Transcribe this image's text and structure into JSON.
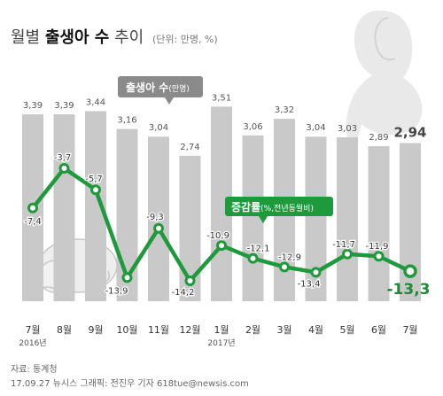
{
  "header": {
    "title_prefix": "월별",
    "title_bold": "출생아 수",
    "title_suffix": "추이",
    "unit": "(단위: 만명, %)"
  },
  "legend": {
    "births_label": "출생아 수",
    "births_unit": "(만명)",
    "rate_label": "증감률",
    "rate_unit": "(%,전년동월비)"
  },
  "footer": {
    "source": "자료: 통계청",
    "credit": "17.09.27 뉴시스 그래픽: 전진우 기자 618tue@newsis.com"
  },
  "colors": {
    "bar": "#c9c9c9",
    "line": "#1e9a3c",
    "accent_text": "#1e8a36",
    "callout_gray": "#8a8a8a",
    "text": "#333333"
  },
  "chart_data": {
    "type": "bar+line",
    "categories": [
      "7월",
      "8월",
      "9월",
      "10월",
      "11월",
      "12월",
      "1월",
      "2월",
      "3월",
      "4월",
      "5월",
      "6월",
      "7월"
    ],
    "year_labels": [
      {
        "index": 0,
        "text": "2016년"
      },
      {
        "index": 6,
        "text": "2017년"
      }
    ],
    "series": [
      {
        "name": "출생아 수",
        "kind": "bar",
        "unit": "만명",
        "values": [
          3.39,
          3.39,
          3.44,
          3.16,
          3.04,
          2.74,
          3.51,
          3.06,
          3.32,
          3.04,
          3.03,
          2.89,
          2.94
        ],
        "labels": [
          "3,39",
          "3,39",
          "3,44",
          "3,16",
          "3,04",
          "2,74",
          "3,51",
          "3,06",
          "3,32",
          "3,04",
          "3,03",
          "2,89",
          "2,94"
        ]
      },
      {
        "name": "증감률",
        "kind": "line",
        "unit": "%",
        "values": [
          -7.4,
          -3.7,
          -5.7,
          -13.9,
          -9.3,
          -14.2,
          -10.9,
          -12.1,
          -12.9,
          -13.4,
          -11.7,
          -11.9,
          -13.3
        ],
        "labels": [
          "-7,4",
          "-3,7",
          "-5,7",
          "-13,9",
          "-9,3",
          "-14,2",
          "-10,9",
          "-12,1",
          "-12,9",
          "-13,4",
          "-11,7",
          "-11,9",
          "-13,3"
        ]
      }
    ],
    "highlight_index": 12
  }
}
